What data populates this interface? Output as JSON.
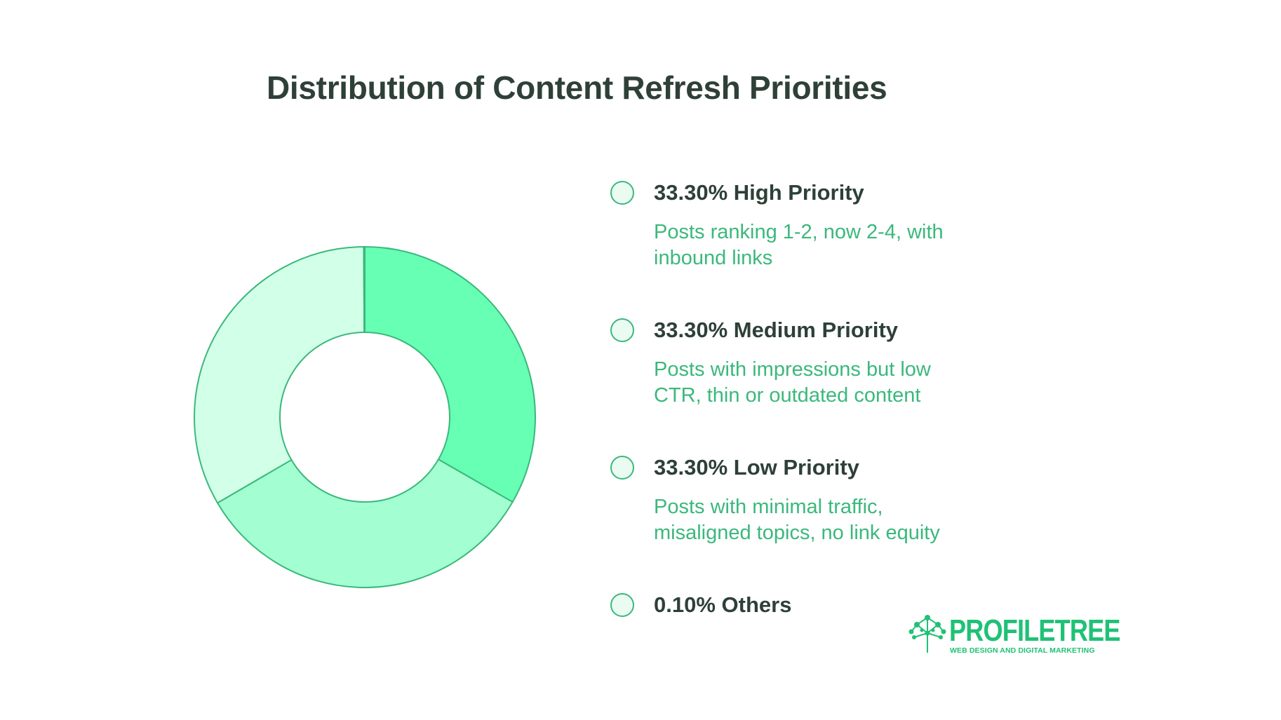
{
  "chart_data": {
    "type": "pie",
    "title": "Distribution of Content Refresh Priorities",
    "donut": true,
    "legend_placement": "right",
    "series": [
      {
        "name": "High Priority",
        "value": 33.3,
        "label": "33.30% High Priority",
        "description": "Posts ranking 1-2, now 2-4, with inbound links",
        "color": "#66ffb3"
      },
      {
        "name": "Medium Priority",
        "value": 33.3,
        "label": "33.30% Medium Priority",
        "description": "Posts with impressions but low CTR, thin or outdated content",
        "color": "#a3ffd1"
      },
      {
        "name": "Low Priority",
        "value": 33.3,
        "label": "33.30% Low Priority",
        "description": "Posts with minimal traffic, misaligned topics, no link equity",
        "color": "#d1ffe8"
      },
      {
        "name": "Others",
        "value": 0.1,
        "label": "0.10% Others",
        "description": "",
        "color": "#3bb87c"
      }
    ]
  },
  "logo": {
    "name": "PROFILETREE",
    "tagline": "WEB DESIGN AND DIGITAL MARKETING",
    "color": "#1fc176"
  },
  "colors": {
    "title": "#2e4038",
    "accent": "#3bb87c",
    "stroke": "#3bb87c"
  }
}
